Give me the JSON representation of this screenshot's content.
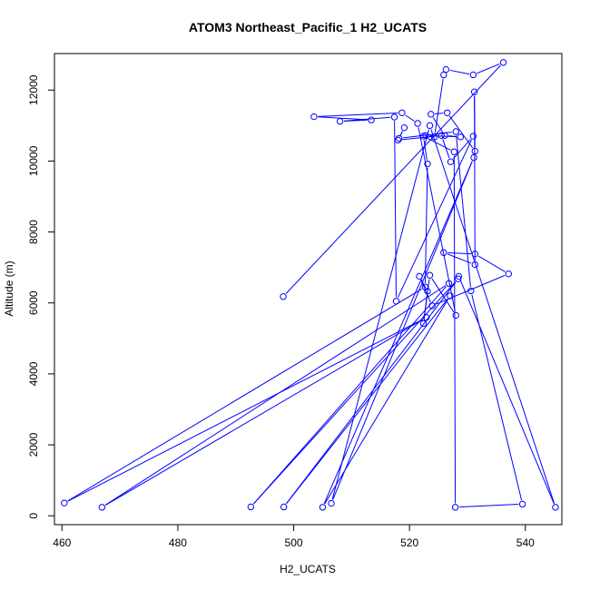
{
  "chart_data": {
    "type": "line",
    "title": "ATOM3 Northeast_Pacific_1 H2_UCATS",
    "xlabel": "H2_UCATS",
    "ylabel": "Altitude (m)",
    "xlim": [
      458.7,
      546.3
    ],
    "ylim": [
      -250,
      13030
    ],
    "x_ticks": [
      460,
      480,
      500,
      520,
      540
    ],
    "y_ticks": [
      0,
      2000,
      4000,
      6000,
      8000,
      10000,
      12000
    ],
    "series": [
      {
        "color": "#0000ff",
        "marker": "open-circle",
        "points": [
          [
            498.2,
            6180
          ],
          [
            536.2,
            12780
          ],
          [
            531.0,
            12430
          ],
          [
            526.3,
            12580
          ],
          [
            525.9,
            12430
          ],
          [
            524.3,
            10680
          ],
          [
            522.8,
            10720
          ],
          [
            528.8,
            10680
          ],
          [
            526.1,
            10720
          ],
          [
            523.7,
            11320
          ],
          [
            526.5,
            11360
          ],
          [
            531.3,
            10280
          ],
          [
            531.2,
            11950
          ],
          [
            531.3,
            7080
          ],
          [
            525.9,
            7420
          ],
          [
            531.3,
            7380
          ],
          [
            537.1,
            6820
          ],
          [
            523.9,
            5920
          ],
          [
            521.7,
            6750
          ],
          [
            523.1,
            6330
          ],
          [
            522.4,
            5420
          ],
          [
            523.5,
            6780
          ],
          [
            528.0,
            5650
          ],
          [
            521.4,
            11060
          ],
          [
            518.7,
            11360
          ],
          [
            503.5,
            11250
          ],
          [
            513.4,
            11160
          ],
          [
            508.0,
            11120
          ],
          [
            517.4,
            11240
          ],
          [
            517.7,
            6050
          ],
          [
            531.0,
            10700
          ],
          [
            527.1,
            9980
          ],
          [
            525.5,
            10720
          ],
          [
            518.0,
            10590
          ],
          [
            519.1,
            10940
          ],
          [
            518.2,
            10640
          ],
          [
            528.0,
            10830
          ],
          [
            530.6,
            6340
          ],
          [
            539.5,
            330
          ],
          [
            527.9,
            240
          ],
          [
            527.7,
            10260
          ],
          [
            522.4,
            10700
          ],
          [
            523.1,
            9920
          ],
          [
            522.7,
            6450
          ],
          [
            460.4,
            360
          ],
          [
            522.9,
            5590
          ],
          [
            466.9,
            240
          ],
          [
            526.8,
            6550
          ],
          [
            492.6,
            250
          ],
          [
            528.4,
            6680
          ],
          [
            498.3,
            250
          ],
          [
            527.0,
            6200
          ],
          [
            505.0,
            240
          ],
          [
            531.1,
            10100
          ],
          [
            506.5,
            350
          ],
          [
            523.5,
            11000
          ],
          [
            545.2,
            240
          ],
          [
            528.5,
            6750
          ]
        ]
      }
    ]
  }
}
